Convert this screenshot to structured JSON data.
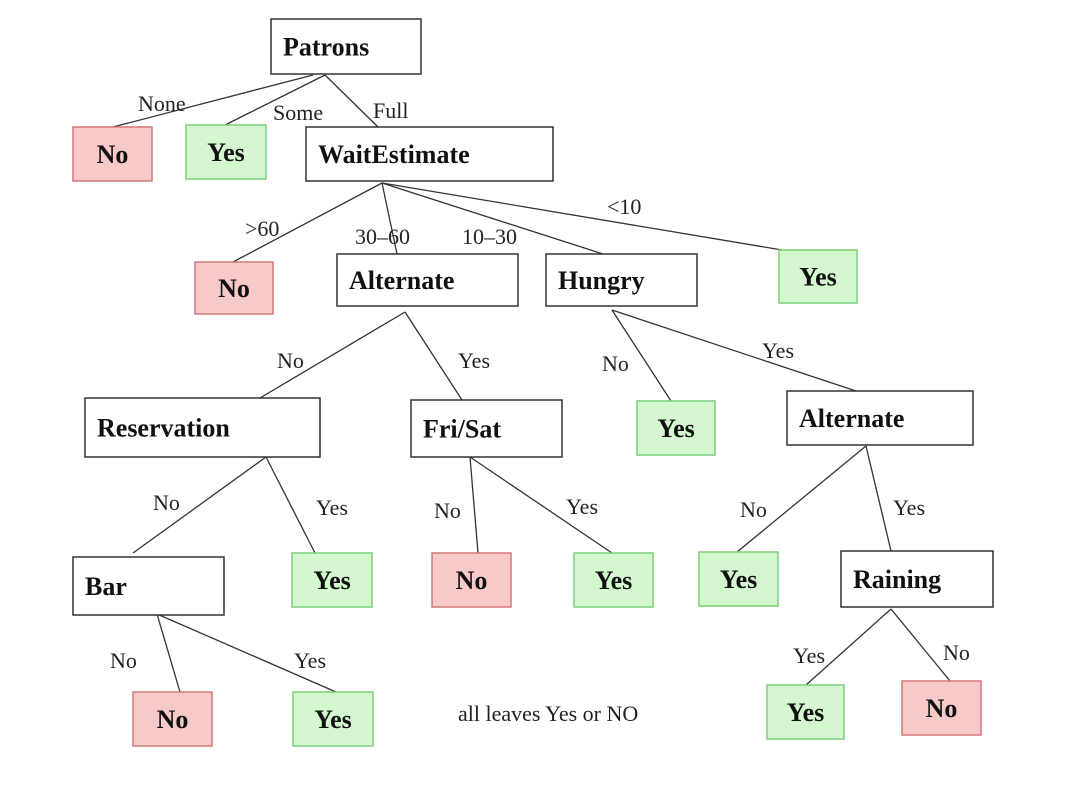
{
  "colors": {
    "yes_fill": "#d4f7d0",
    "yes_stroke": "#7fcf7a",
    "no_fill": "#f7c9c9",
    "no_stroke": "#d07a7a",
    "decision_fill": "#ffffff",
    "decision_stroke": "#333333"
  },
  "nodes": [
    {
      "id": "patrons",
      "label": "Patrons",
      "kind": "decision"
    },
    {
      "id": "no1",
      "label": "No",
      "kind": "no"
    },
    {
      "id": "yes1",
      "label": "Yes",
      "kind": "yes"
    },
    {
      "id": "wait",
      "label": "WaitEstimate",
      "kind": "decision"
    },
    {
      "id": "no2",
      "label": "No",
      "kind": "no"
    },
    {
      "id": "alt1",
      "label": "Alternate",
      "kind": "decision"
    },
    {
      "id": "hungry",
      "label": "Hungry",
      "kind": "decision"
    },
    {
      "id": "yes2",
      "label": "Yes",
      "kind": "yes"
    },
    {
      "id": "reservation",
      "label": "Reservation",
      "kind": "decision"
    },
    {
      "id": "frisat",
      "label": "Fri/Sat",
      "kind": "decision"
    },
    {
      "id": "yes3",
      "label": "Yes",
      "kind": "yes"
    },
    {
      "id": "alt2",
      "label": "Alternate",
      "kind": "decision"
    },
    {
      "id": "bar",
      "label": "Bar",
      "kind": "decision"
    },
    {
      "id": "yes4",
      "label": "Yes",
      "kind": "yes"
    },
    {
      "id": "no3",
      "label": "No",
      "kind": "no"
    },
    {
      "id": "yes5",
      "label": "Yes",
      "kind": "yes"
    },
    {
      "id": "yes6",
      "label": "Yes",
      "kind": "yes"
    },
    {
      "id": "raining",
      "label": "Raining",
      "kind": "decision"
    },
    {
      "id": "no4",
      "label": "No",
      "kind": "no"
    },
    {
      "id": "yes7",
      "label": "Yes",
      "kind": "yes"
    },
    {
      "id": "yes8",
      "label": "Yes",
      "kind": "yes"
    },
    {
      "id": "no5",
      "label": "No",
      "kind": "no"
    }
  ],
  "edges": [
    {
      "from": "patrons",
      "to": "no1",
      "label": "None"
    },
    {
      "from": "patrons",
      "to": "yes1",
      "label": "Some"
    },
    {
      "from": "patrons",
      "to": "wait",
      "label": "Full"
    },
    {
      "from": "wait",
      "to": "no2",
      "label": ">60"
    },
    {
      "from": "wait",
      "to": "alt1",
      "label": "30–60"
    },
    {
      "from": "wait",
      "to": "hungry",
      "label": "10–30"
    },
    {
      "from": "wait",
      "to": "yes2",
      "label": "<10"
    },
    {
      "from": "alt1",
      "to": "reservation",
      "label": "No"
    },
    {
      "from": "alt1",
      "to": "frisat",
      "label": "Yes"
    },
    {
      "from": "hungry",
      "to": "yes3",
      "label": "No"
    },
    {
      "from": "hungry",
      "to": "alt2",
      "label": "Yes"
    },
    {
      "from": "reservation",
      "to": "bar",
      "label": "No"
    },
    {
      "from": "reservation",
      "to": "yes4",
      "label": "Yes"
    },
    {
      "from": "frisat",
      "to": "no3",
      "label": "No"
    },
    {
      "from": "frisat",
      "to": "yes5",
      "label": "Yes"
    },
    {
      "from": "alt2",
      "to": "yes6",
      "label": "No"
    },
    {
      "from": "alt2",
      "to": "raining",
      "label": "Yes"
    },
    {
      "from": "bar",
      "to": "no4",
      "label": "No"
    },
    {
      "from": "bar",
      "to": "yes7",
      "label": "Yes"
    },
    {
      "from": "raining",
      "to": "yes8",
      "label": "Yes"
    },
    {
      "from": "raining",
      "to": "no5",
      "label": "No"
    }
  ],
  "caption": "all leaves Yes or NO"
}
